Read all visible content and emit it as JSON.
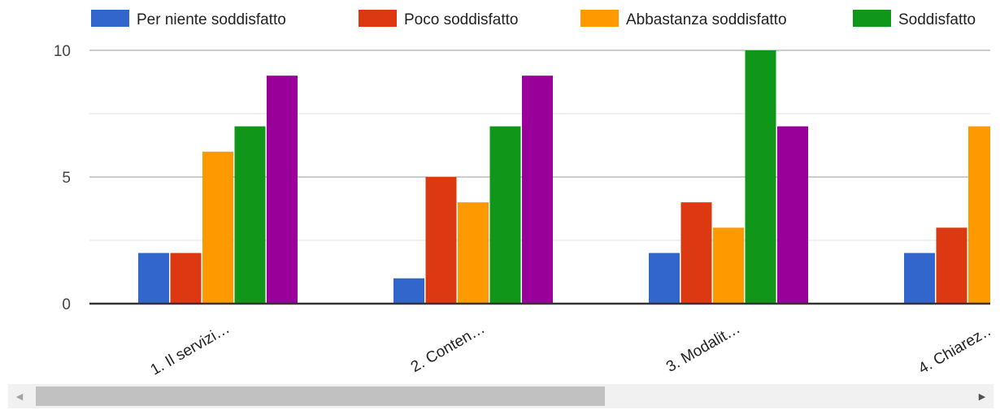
{
  "chart_data": {
    "type": "bar",
    "categories": [
      "1. Il servizi…",
      "2. Conten…",
      "3. Modalit…",
      "4. Chiarez…"
    ],
    "series": [
      {
        "name": "Per niente soddisfatto",
        "color": "#3366cc",
        "values": [
          2,
          1,
          2,
          2
        ]
      },
      {
        "name": "Poco soddisfatto",
        "color": "#dc3912",
        "values": [
          2,
          5,
          4,
          3
        ]
      },
      {
        "name": "Abbastanza soddisfatto",
        "color": "#ff9900",
        "values": [
          6,
          4,
          3,
          7
        ]
      },
      {
        "name": "Soddisfatto",
        "color": "#109618",
        "values": [
          7,
          7,
          10,
          null
        ]
      },
      {
        "name": "",
        "color": "#990099",
        "values": [
          9,
          9,
          7,
          null
        ]
      }
    ],
    "yticks": [
      "0",
      "5",
      "10"
    ],
    "ylim": [
      0,
      10
    ],
    "grid": true,
    "legend": "top"
  },
  "scrollbar": {
    "left_arrow_icon": "triangle-left-icon",
    "right_arrow_icon": "triangle-right-icon",
    "position": 0.0
  }
}
